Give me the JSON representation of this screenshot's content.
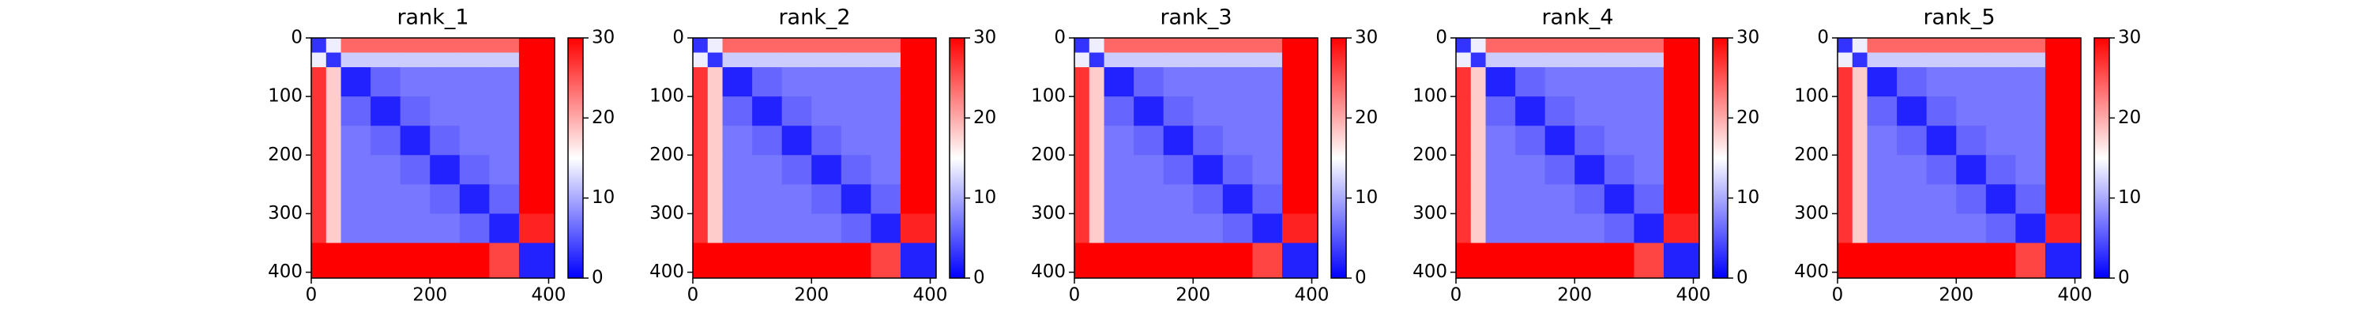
{
  "chart_data": [
    {
      "type": "heatmap",
      "title": "rank_1",
      "x_edges": [
        0,
        25,
        50,
        100,
        150,
        200,
        250,
        300,
        350,
        410
      ],
      "y_edges": [
        0,
        25,
        50,
        100,
        150,
        200,
        250,
        300,
        350,
        410
      ],
      "values": [
        [
          3,
          14,
          24,
          24,
          24,
          24,
          24,
          24,
          30
        ],
        [
          14,
          3,
          12,
          12,
          12,
          12,
          12,
          12,
          30
        ],
        [
          27,
          18,
          2,
          6,
          7,
          7,
          7,
          7,
          30
        ],
        [
          27,
          18,
          6,
          2,
          6,
          7,
          7,
          7,
          30
        ],
        [
          27,
          18,
          7,
          6,
          2,
          6,
          7,
          7,
          30
        ],
        [
          27,
          18,
          7,
          7,
          6,
          2,
          6,
          7,
          30
        ],
        [
          27,
          18,
          7,
          7,
          7,
          6,
          2,
          6,
          30
        ],
        [
          27,
          18,
          7,
          7,
          7,
          7,
          6,
          2,
          28
        ],
        [
          30,
          30,
          30,
          30,
          30,
          30,
          30,
          26,
          2
        ]
      ],
      "xlim": [
        0,
        410
      ],
      "ylim": [
        410,
        0
      ],
      "xticks": [
        0,
        200,
        400
      ],
      "yticks": [
        0,
        100,
        200,
        300,
        400
      ],
      "colors": [
        "#0000ff",
        "#ffffff",
        "#ff0000"
      ],
      "clim": [
        0,
        30
      ],
      "cticks": [
        0,
        10,
        20,
        30
      ]
    },
    {
      "type": "heatmap",
      "title": "rank_2",
      "x_edges": [
        0,
        25,
        50,
        100,
        150,
        200,
        250,
        300,
        350,
        410
      ],
      "y_edges": [
        0,
        25,
        50,
        100,
        150,
        200,
        250,
        300,
        350,
        410
      ],
      "values": [
        [
          3,
          14,
          24,
          24,
          24,
          24,
          24,
          24,
          30
        ],
        [
          14,
          3,
          12,
          12,
          12,
          12,
          12,
          12,
          30
        ],
        [
          27,
          18,
          2,
          6,
          7,
          7,
          7,
          7,
          30
        ],
        [
          27,
          18,
          6,
          2,
          6,
          7,
          7,
          7,
          30
        ],
        [
          27,
          18,
          7,
          6,
          2,
          6,
          7,
          7,
          30
        ],
        [
          27,
          18,
          7,
          7,
          6,
          2,
          6,
          7,
          30
        ],
        [
          27,
          18,
          7,
          7,
          7,
          6,
          2,
          6,
          30
        ],
        [
          27,
          18,
          7,
          7,
          7,
          7,
          6,
          2,
          28
        ],
        [
          30,
          30,
          30,
          30,
          30,
          30,
          30,
          26,
          2
        ]
      ],
      "xlim": [
        0,
        410
      ],
      "ylim": [
        410,
        0
      ],
      "xticks": [
        0,
        200,
        400
      ],
      "yticks": [
        0,
        100,
        200,
        300,
        400
      ],
      "colors": [
        "#0000ff",
        "#ffffff",
        "#ff0000"
      ],
      "clim": [
        0,
        30
      ],
      "cticks": [
        0,
        10,
        20,
        30
      ]
    },
    {
      "type": "heatmap",
      "title": "rank_3",
      "x_edges": [
        0,
        25,
        50,
        100,
        150,
        200,
        250,
        300,
        350,
        410
      ],
      "y_edges": [
        0,
        25,
        50,
        100,
        150,
        200,
        250,
        300,
        350,
        410
      ],
      "values": [
        [
          3,
          14,
          24,
          24,
          24,
          24,
          24,
          24,
          30
        ],
        [
          14,
          3,
          12,
          12,
          12,
          12,
          12,
          12,
          30
        ],
        [
          27,
          18,
          2,
          6,
          7,
          7,
          7,
          7,
          30
        ],
        [
          27,
          18,
          6,
          2,
          6,
          7,
          7,
          7,
          30
        ],
        [
          27,
          18,
          7,
          6,
          2,
          6,
          7,
          7,
          30
        ],
        [
          27,
          18,
          7,
          7,
          6,
          2,
          6,
          7,
          30
        ],
        [
          27,
          18,
          7,
          7,
          7,
          6,
          2,
          6,
          30
        ],
        [
          27,
          18,
          7,
          7,
          7,
          7,
          6,
          2,
          28
        ],
        [
          30,
          30,
          30,
          30,
          30,
          30,
          30,
          26,
          2
        ]
      ],
      "xlim": [
        0,
        410
      ],
      "ylim": [
        410,
        0
      ],
      "xticks": [
        0,
        200,
        400
      ],
      "yticks": [
        0,
        100,
        200,
        300,
        400
      ],
      "colors": [
        "#0000ff",
        "#ffffff",
        "#ff0000"
      ],
      "clim": [
        0,
        30
      ],
      "cticks": [
        0,
        10,
        20,
        30
      ]
    },
    {
      "type": "heatmap",
      "title": "rank_4",
      "x_edges": [
        0,
        25,
        50,
        100,
        150,
        200,
        250,
        300,
        350,
        410
      ],
      "y_edges": [
        0,
        25,
        50,
        100,
        150,
        200,
        250,
        300,
        350,
        410
      ],
      "values": [
        [
          3,
          14,
          24,
          24,
          24,
          24,
          24,
          24,
          30
        ],
        [
          14,
          3,
          12,
          12,
          12,
          12,
          12,
          12,
          30
        ],
        [
          27,
          18,
          2,
          6,
          7,
          7,
          7,
          7,
          30
        ],
        [
          27,
          18,
          6,
          2,
          6,
          7,
          7,
          7,
          30
        ],
        [
          27,
          18,
          7,
          6,
          2,
          6,
          7,
          7,
          30
        ],
        [
          27,
          18,
          7,
          7,
          6,
          2,
          6,
          7,
          30
        ],
        [
          27,
          18,
          7,
          7,
          7,
          6,
          2,
          6,
          30
        ],
        [
          27,
          18,
          7,
          7,
          7,
          7,
          6,
          2,
          28
        ],
        [
          30,
          30,
          30,
          30,
          30,
          30,
          30,
          26,
          2
        ]
      ],
      "xlim": [
        0,
        410
      ],
      "ylim": [
        410,
        0
      ],
      "xticks": [
        0,
        200,
        400
      ],
      "yticks": [
        0,
        100,
        200,
        300,
        400
      ],
      "colors": [
        "#0000ff",
        "#ffffff",
        "#ff0000"
      ],
      "clim": [
        0,
        30
      ],
      "cticks": [
        0,
        10,
        20,
        30
      ]
    },
    {
      "type": "heatmap",
      "title": "rank_5",
      "x_edges": [
        0,
        25,
        50,
        100,
        150,
        200,
        250,
        300,
        350,
        410
      ],
      "y_edges": [
        0,
        25,
        50,
        100,
        150,
        200,
        250,
        300,
        350,
        410
      ],
      "values": [
        [
          3,
          14,
          24,
          24,
          24,
          24,
          24,
          24,
          30
        ],
        [
          14,
          3,
          12,
          12,
          12,
          12,
          12,
          12,
          30
        ],
        [
          27,
          18,
          2,
          6,
          7,
          7,
          7,
          7,
          30
        ],
        [
          27,
          18,
          6,
          2,
          6,
          7,
          7,
          7,
          30
        ],
        [
          27,
          18,
          7,
          6,
          2,
          6,
          7,
          7,
          30
        ],
        [
          27,
          18,
          7,
          7,
          6,
          2,
          6,
          7,
          30
        ],
        [
          27,
          18,
          7,
          7,
          7,
          6,
          2,
          6,
          30
        ],
        [
          27,
          18,
          7,
          7,
          7,
          7,
          6,
          2,
          28
        ],
        [
          30,
          30,
          30,
          30,
          30,
          30,
          30,
          26,
          2
        ]
      ],
      "xlim": [
        0,
        410
      ],
      "ylim": [
        410,
        0
      ],
      "xticks": [
        0,
        200,
        400
      ],
      "yticks": [
        0,
        100,
        200,
        300,
        400
      ],
      "colors": [
        "#0000ff",
        "#ffffff",
        "#ff0000"
      ],
      "clim": [
        0,
        30
      ],
      "cticks": [
        0,
        10,
        20,
        30
      ]
    }
  ]
}
